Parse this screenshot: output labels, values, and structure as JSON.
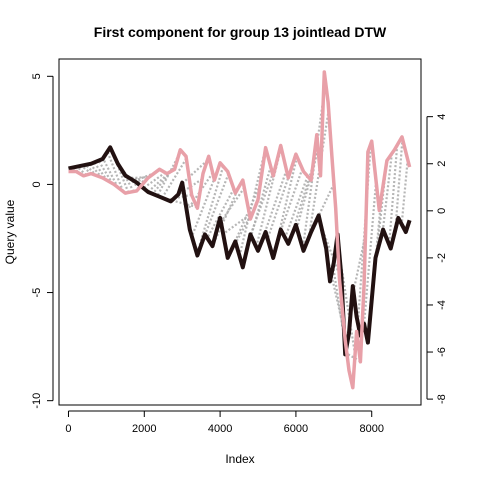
{
  "chart_data": {
    "type": "line",
    "title": "First component for group 13 jointlead DTW",
    "xlabel": "Index",
    "ylabel": "Query value",
    "x_ticks": [
      0,
      2000,
      4000,
      6000,
      8000
    ],
    "xlim": [
      -250,
      9300
    ],
    "ylim": [
      -10.2,
      5.8
    ],
    "y_ticks": [
      -10,
      -5,
      0,
      5
    ],
    "y2lim": [
      -8.25,
      6.45
    ],
    "y2_ticks": [
      -8,
      -6,
      -4,
      -2,
      0,
      2,
      4
    ],
    "grid": false,
    "legend": "none",
    "colors": {
      "query": "#e8a0a8",
      "reference": "#221111",
      "warp": "#aaaaaa"
    },
    "series": [
      {
        "role": "query",
        "axis": "left",
        "x": [
          0,
          200,
          400,
          600,
          900,
          1200,
          1500,
          1800,
          2100,
          2400,
          2600,
          2800,
          2950,
          3100,
          3250,
          3400,
          3550,
          3700,
          3850,
          4000,
          4200,
          4400,
          4600,
          4800,
          5000,
          5200,
          5400,
          5600,
          5800,
          6000,
          6200,
          6400,
          6550,
          6650,
          6750,
          6850,
          6950,
          7050,
          7150,
          7300,
          7400,
          7500,
          7600,
          7700,
          7800,
          7900,
          8000,
          8200,
          8400,
          8600,
          8800,
          9000
        ],
        "y": [
          0.6,
          0.6,
          0.4,
          0.5,
          0.3,
          0.0,
          -0.4,
          -0.3,
          0.3,
          0.7,
          0.5,
          0.7,
          1.6,
          1.3,
          -0.5,
          -1.1,
          0.5,
          1.3,
          0.2,
          1.0,
          0.6,
          -0.4,
          0.2,
          -1.6,
          -0.7,
          1.7,
          0.4,
          1.8,
          0.3,
          1.4,
          0.6,
          0.2,
          2.3,
          0.4,
          5.2,
          3.8,
          1.3,
          -1.1,
          -4.4,
          -7.2,
          -8.6,
          -9.4,
          -6.8,
          -8.2,
          -4.6,
          1.5,
          2.0,
          -1.2,
          1.1,
          1.6,
          2.2,
          0.8
        ]
      },
      {
        "role": "reference",
        "axis": "right",
        "x": [
          0,
          300,
          600,
          900,
          1100,
          1300,
          1500,
          1800,
          2100,
          2400,
          2700,
          2900,
          3000,
          3200,
          3400,
          3600,
          3800,
          4000,
          4200,
          4400,
          4600,
          4800,
          5000,
          5200,
          5400,
          5600,
          5800,
          6000,
          6200,
          6400,
          6600,
          6800,
          6900,
          7000,
          7100,
          7200,
          7300,
          7400,
          7500,
          7600,
          7700,
          7800,
          7900,
          8100,
          8300,
          8500,
          8700,
          8900,
          9000
        ],
        "y": [
          1.8,
          1.9,
          2.0,
          2.2,
          2.7,
          2.0,
          1.5,
          1.2,
          0.8,
          0.6,
          0.4,
          0.7,
          1.2,
          -0.8,
          -1.9,
          -1.0,
          -1.5,
          -0.3,
          -2.0,
          -1.3,
          -2.4,
          -1.0,
          -1.7,
          -0.9,
          -2.0,
          -0.8,
          -1.4,
          -0.6,
          -1.7,
          -0.9,
          -0.2,
          -1.6,
          -3.0,
          -2.2,
          -1.0,
          -2.8,
          -6.1,
          -5.2,
          -3.2,
          -4.5,
          -5.3,
          -4.8,
          -5.6,
          -2.0,
          -0.8,
          -1.6,
          -0.3,
          -0.9,
          -0.4
        ]
      }
    ]
  }
}
